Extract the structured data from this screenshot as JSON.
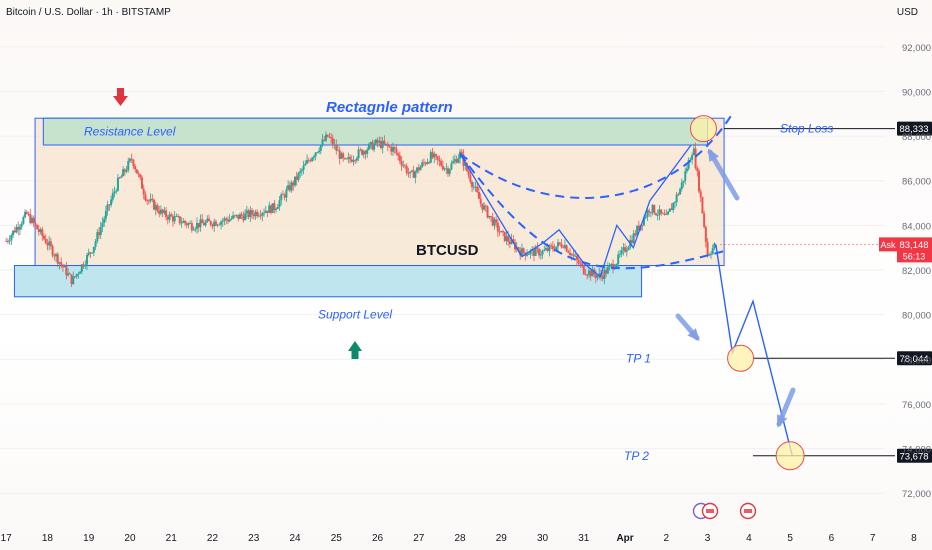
{
  "header": {
    "symbol_line": "Bitcoin / U.S. Dollar · 1h · BITSTAMP",
    "currency": "USD"
  },
  "colors": {
    "up_candle": "#26a69a",
    "down_candle": "#ef5350",
    "pattern_blue": "#2962ff",
    "zone_green": "#b7dfc9",
    "zone_teal": "#a9dce8",
    "zone_orange": "#f6e3cc",
    "target_circle": "#fff2a6",
    "price_tag": "#131722",
    "ask_tag": "#f23645"
  },
  "chart_data": {
    "type": "candlestick",
    "title": "Bitcoin / U.S. Dollar · 1h · BITSTAMP",
    "symbol": "BTCUSD",
    "y_axis": {
      "ticks": [
        92000,
        90000,
        88000,
        86000,
        84000,
        82000,
        80000,
        78000,
        76000,
        74000,
        72000
      ],
      "tick_labels": [
        "92,000",
        "90,000",
        "88,000",
        "86,000",
        "84,000",
        "82,000",
        "80,000",
        "78,000",
        "76,000",
        "74,000",
        "72,000"
      ],
      "range": [
        70800,
        93200
      ]
    },
    "x_axis": {
      "ticks": [
        "17",
        "18",
        "19",
        "20",
        "21",
        "22",
        "23",
        "24",
        "25",
        "26",
        "27",
        "28",
        "29",
        "30",
        "31",
        "Apr",
        "2",
        "3",
        "4",
        "5",
        "6",
        "7",
        "8"
      ]
    },
    "price_path": [
      {
        "day": 17.0,
        "price": 83300
      },
      {
        "day": 17.5,
        "price": 84500
      },
      {
        "day": 18.0,
        "price": 83200
      },
      {
        "day": 18.6,
        "price": 81500
      },
      {
        "day": 19.1,
        "price": 83000
      },
      {
        "day": 19.7,
        "price": 85900
      },
      {
        "day": 20.05,
        "price": 87000
      },
      {
        "day": 20.4,
        "price": 85200
      },
      {
        "day": 20.8,
        "price": 84500
      },
      {
        "day": 21.5,
        "price": 84000
      },
      {
        "day": 22.2,
        "price": 84200
      },
      {
        "day": 22.9,
        "price": 84500
      },
      {
        "day": 23.5,
        "price": 84800
      },
      {
        "day": 24.0,
        "price": 86000
      },
      {
        "day": 24.4,
        "price": 87100
      },
      {
        "day": 24.8,
        "price": 88000
      },
      {
        "day": 25.2,
        "price": 86800
      },
      {
        "day": 25.6,
        "price": 87300
      },
      {
        "day": 26.0,
        "price": 87700
      },
      {
        "day": 26.4,
        "price": 87400
      },
      {
        "day": 26.8,
        "price": 86200
      },
      {
        "day": 27.3,
        "price": 87100
      },
      {
        "day": 27.7,
        "price": 86500
      },
      {
        "day": 28.0,
        "price": 87200
      },
      {
        "day": 28.5,
        "price": 85000
      },
      {
        "day": 29.0,
        "price": 83600
      },
      {
        "day": 29.5,
        "price": 82800
      },
      {
        "day": 30.0,
        "price": 82800
      },
      {
        "day": 30.5,
        "price": 83200
      },
      {
        "day": 31.0,
        "price": 82000
      },
      {
        "day": 31.4,
        "price": 81700
      },
      {
        "day": 31.8,
        "price": 82400
      },
      {
        "day": 32.2,
        "price": 83500
      },
      {
        "day": 32.6,
        "price": 84800
      },
      {
        "day": 33.0,
        "price": 84300
      },
      {
        "day": 33.35,
        "price": 85700
      },
      {
        "day": 33.65,
        "price": 87500
      },
      {
        "day": 33.85,
        "price": 85000
      },
      {
        "day": 34.0,
        "price": 82700
      },
      {
        "day": 34.2,
        "price": 83148
      }
    ],
    "last_price": {
      "value": 83148,
      "label": "83,148",
      "tag": "Ask",
      "countdown": "56:13"
    },
    "rectangle_pattern": {
      "top": 88800,
      "bottom": 82200,
      "from_day": 17.7,
      "to_day": 34.4
    },
    "zones": [
      {
        "name": "resistance",
        "top": 88800,
        "bottom": 87600,
        "from_day": 17.9,
        "to_day": 34.0
      },
      {
        "name": "support",
        "top": 82200,
        "bottom": 80800,
        "from_day": 17.2,
        "to_day": 32.4
      }
    ],
    "levels": [
      {
        "label": "Stop Loss",
        "value": 88333,
        "value_label": "88,333"
      },
      {
        "label": "TP 1",
        "value": 78044,
        "value_label": "78,044"
      },
      {
        "label": "TP 2",
        "value": 73678,
        "value_label": "73,678"
      }
    ],
    "projection_path": [
      {
        "day": 34.2,
        "price": 83148
      },
      {
        "day": 34.6,
        "price": 78300
      },
      {
        "day": 35.1,
        "price": 80600
      },
      {
        "day": 36.05,
        "price": 73700
      }
    ],
    "cup_curves": [
      {
        "points": [
          [
            28.0,
            87200
          ],
          [
            30.2,
            81700
          ],
          [
            31.4,
            81300
          ],
          [
            34.5,
            82900
          ]
        ]
      },
      {
        "points": [
          [
            28.0,
            87200
          ],
          [
            30.4,
            83900
          ],
          [
            33.2,
            84900
          ],
          [
            34.6,
            89000
          ]
        ]
      }
    ],
    "annotations": {
      "pattern_title": "Rectagnle pattern",
      "resistance_label": "Resistance Level",
      "support_label": "Support Level",
      "symbol_label": "BTCUSD"
    }
  }
}
